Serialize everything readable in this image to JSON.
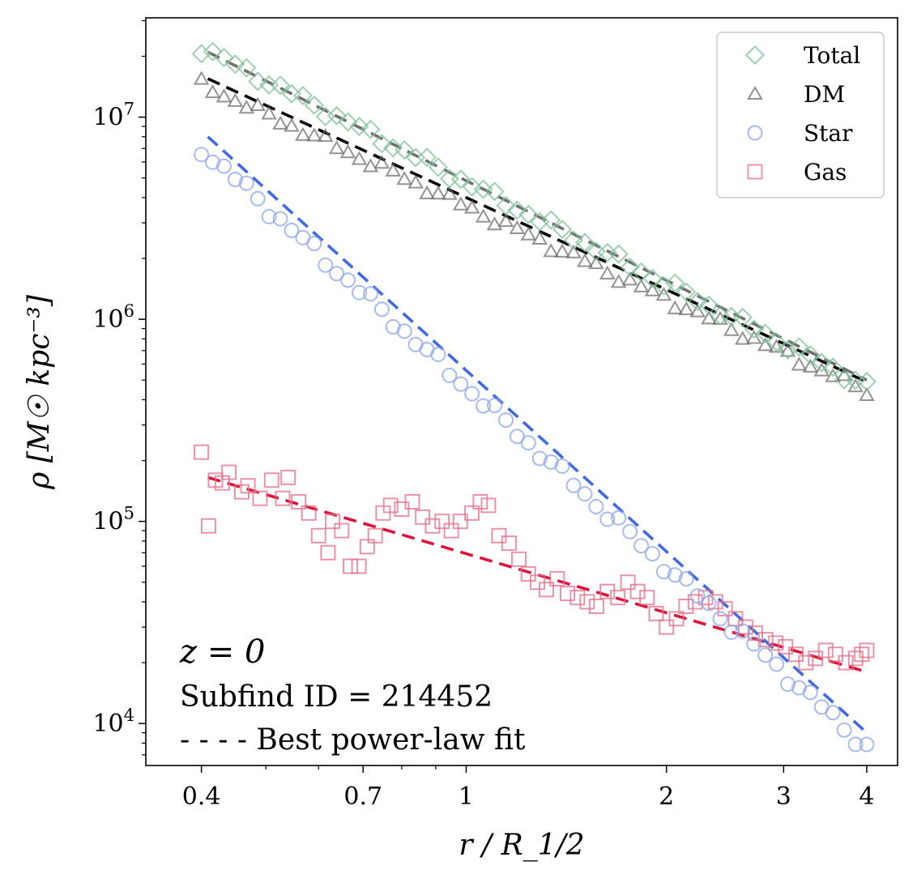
{
  "chart_data": {
    "type": "scatter",
    "xscale": "log",
    "yscale": "log",
    "xlim": [
      0.33,
      4.45
    ],
    "ylim": [
      6200,
      31000000
    ],
    "xlabel": "r / R_1/2",
    "ylabel": "ρ [M☉ kpc⁻³]",
    "x_ticks": [
      {
        "value": 0.4,
        "label": "0.4"
      },
      {
        "value": 0.7,
        "label": "0.7"
      },
      {
        "value": 1,
        "label": "1"
      },
      {
        "value": 2,
        "label": "2"
      },
      {
        "value": 3,
        "label": "3"
      },
      {
        "value": 4,
        "label": "4"
      }
    ],
    "y_ticks": [
      {
        "value": 10000,
        "base": "10",
        "exp": "4"
      },
      {
        "value": 100000,
        "base": "10",
        "exp": "5"
      },
      {
        "value": 1000000,
        "base": "10",
        "exp": "6"
      },
      {
        "value": 10000000,
        "base": "10",
        "exp": "7"
      }
    ],
    "x_range": [
      0.4,
      4.0
    ],
    "n_points": 60,
    "series": [
      {
        "name": "Total",
        "marker": "diamond",
        "color": "#7fbf95",
        "fit_color": "#707070",
        "fit": {
          "y_at_0.4": 21000000,
          "y_at_4": 500000
        },
        "data_start": 22000000,
        "data_end": 470000,
        "jitter": 0.03
      },
      {
        "name": "DM",
        "marker": "triangle",
        "color": "#6f6f6f",
        "fit_color": "#000000",
        "fit": {
          "y_at_0.4": 15500000,
          "y_at_4": 490000
        },
        "data_start": 14500000,
        "data_end": 440000,
        "jitter": 0.03
      },
      {
        "name": "Star",
        "marker": "circle",
        "color": "#8aa4e8",
        "fit_color": "#4169e1",
        "fit": {
          "y_at_0.4": 8000000,
          "y_at_4": 9000
        },
        "data_start": 7000000,
        "data_end": 7600,
        "jitter": 0.04
      },
      {
        "name": "Gas",
        "marker": "square",
        "color": "#e0708a",
        "fit_color": "#dc143c",
        "fit": {
          "y_at_0.4": 165000,
          "y_at_4": 18000
        },
        "points": [
          [
            0.4,
            220000
          ],
          [
            0.41,
            95000
          ],
          [
            0.42,
            160000
          ],
          [
            0.43,
            155000
          ],
          [
            0.44,
            175000
          ],
          [
            0.46,
            140000
          ],
          [
            0.47,
            150000
          ],
          [
            0.49,
            130000
          ],
          [
            0.51,
            160000
          ],
          [
            0.53,
            130000
          ],
          [
            0.54,
            165000
          ],
          [
            0.56,
            125000
          ],
          [
            0.58,
            110000
          ],
          [
            0.6,
            85000
          ],
          [
            0.62,
            70000
          ],
          [
            0.63,
            100000
          ],
          [
            0.65,
            90000
          ],
          [
            0.67,
            60000
          ],
          [
            0.69,
            60000
          ],
          [
            0.71,
            75000
          ],
          [
            0.73,
            85000
          ],
          [
            0.75,
            110000
          ],
          [
            0.77,
            120000
          ],
          [
            0.8,
            115000
          ],
          [
            0.83,
            125000
          ],
          [
            0.86,
            105000
          ],
          [
            0.89,
            95000
          ],
          [
            0.92,
            100000
          ],
          [
            0.95,
            90000
          ],
          [
            0.98,
            100000
          ],
          [
            1.02,
            110000
          ],
          [
            1.05,
            125000
          ],
          [
            1.08,
            120000
          ],
          [
            1.12,
            85000
          ],
          [
            1.16,
            78000
          ],
          [
            1.2,
            65000
          ],
          [
            1.24,
            55000
          ],
          [
            1.28,
            50000
          ],
          [
            1.32,
            46000
          ],
          [
            1.37,
            52000
          ],
          [
            1.42,
            44000
          ],
          [
            1.47,
            42000
          ],
          [
            1.52,
            40000
          ],
          [
            1.57,
            38000
          ],
          [
            1.63,
            45000
          ],
          [
            1.69,
            42000
          ],
          [
            1.75,
            50000
          ],
          [
            1.81,
            45000
          ],
          [
            1.87,
            42000
          ],
          [
            1.93,
            35000
          ],
          [
            2.0,
            30000
          ],
          [
            2.07,
            33000
          ],
          [
            2.14,
            38000
          ],
          [
            2.21,
            40000
          ],
          [
            2.29,
            42000
          ],
          [
            2.37,
            40000
          ],
          [
            2.45,
            37000
          ],
          [
            2.54,
            33000
          ],
          [
            2.63,
            30000
          ],
          [
            2.72,
            28000
          ],
          [
            2.82,
            26000
          ],
          [
            2.92,
            25000
          ],
          [
            3.02,
            24000
          ],
          [
            3.13,
            22000
          ],
          [
            3.24,
            20000
          ],
          [
            3.35,
            21000
          ],
          [
            3.47,
            23000
          ],
          [
            3.59,
            22000
          ],
          [
            3.72,
            20000
          ],
          [
            3.85,
            21000
          ],
          [
            3.93,
            22000
          ],
          [
            4.0,
            23000
          ]
        ]
      }
    ],
    "legend": {
      "position": "top-right",
      "entries": [
        "Total",
        "DM",
        "Star",
        "Gas"
      ]
    },
    "annotations": {
      "redshift": "z = 0",
      "subfind": "Subfind ID = 214452",
      "fit_note": "- - - - Best power-law fit"
    }
  }
}
